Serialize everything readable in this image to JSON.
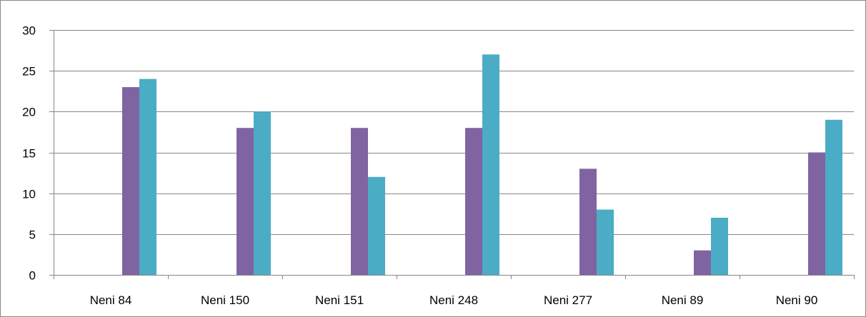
{
  "chart_data": {
    "type": "bar",
    "categories": [
      "Neni 84",
      "Neni 150",
      "Neni 151",
      "Neni 248",
      "Neni 277",
      "Neni 89",
      "Neni 90"
    ],
    "series": [
      {
        "values": [
          23,
          18,
          18,
          18,
          13,
          3,
          15
        ],
        "color": "#8064A2"
      },
      {
        "values": [
          24,
          20,
          12,
          27,
          8,
          7,
          19
        ],
        "color": "#4BACC6"
      }
    ],
    "ylim": [
      0,
      30
    ],
    "yticks": [
      0,
      5,
      10,
      15,
      20,
      25,
      30
    ],
    "grid": true,
    "title": "",
    "xlabel": "",
    "ylabel": ""
  }
}
